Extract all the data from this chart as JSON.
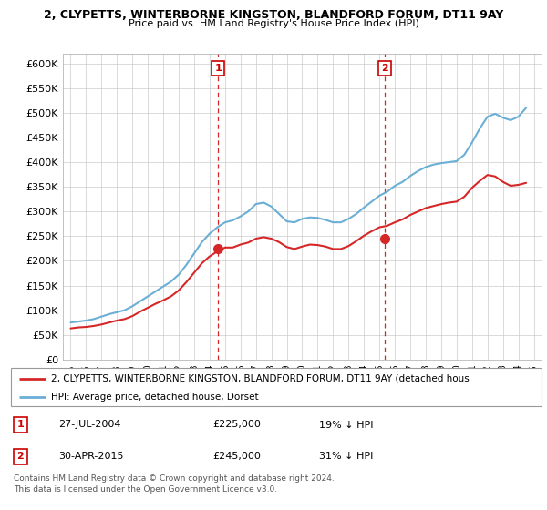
{
  "title_line1": "2, CLYPETTS, WINTERBORNE KINGSTON, BLANDFORD FORUM, DT11 9AY",
  "title_line2": "Price paid vs. HM Land Registry's House Price Index (HPI)",
  "hpi_label": "HPI: Average price, detached house, Dorset",
  "price_label": "2, CLYPETTS, WINTERBORNE KINGSTON, BLANDFORD FORUM, DT11 9AY (detached hous",
  "hpi_color": "#6baed6",
  "price_color": "#d62728",
  "sale1_date": "27-JUL-2004",
  "sale1_price": 225000,
  "sale1_pct": "19%",
  "sale2_date": "30-APR-2015",
  "sale2_price": 245000,
  "sale2_pct": "31%",
  "sale1_year": 2004.56,
  "sale2_year": 2015.33,
  "ylim": [
    0,
    620000
  ],
  "xlim": [
    1994.5,
    2025.5
  ],
  "yticks": [
    0,
    50000,
    100000,
    150000,
    200000,
    250000,
    300000,
    350000,
    400000,
    450000,
    500000,
    550000,
    600000
  ],
  "ytick_labels": [
    "£0",
    "£50K",
    "£100K",
    "£150K",
    "£200K",
    "£250K",
    "£300K",
    "£350K",
    "£400K",
    "£450K",
    "£500K",
    "£550K",
    "£600K"
  ],
  "copyright_text": "Contains HM Land Registry data © Crown copyright and database right 2024.\nThis data is licensed under the Open Government Licence v3.0.",
  "hpi_years": [
    1995,
    1995.5,
    1996,
    1996.5,
    1997,
    1997.5,
    1998,
    1998.5,
    1999,
    1999.5,
    2000,
    2000.5,
    2001,
    2001.5,
    2002,
    2002.5,
    2003,
    2003.5,
    2004,
    2004.5,
    2005,
    2005.5,
    2006,
    2006.5,
    2007,
    2007.5,
    2008,
    2008.5,
    2009,
    2009.5,
    2010,
    2010.5,
    2011,
    2011.5,
    2012,
    2012.5,
    2013,
    2013.5,
    2014,
    2014.5,
    2015,
    2015.5,
    2016,
    2016.5,
    2017,
    2017.5,
    2018,
    2018.5,
    2019,
    2019.5,
    2020,
    2020.5,
    2021,
    2021.5,
    2022,
    2022.5,
    2023,
    2023.5,
    2024,
    2024.5
  ],
  "hpi_values": [
    75000,
    77000,
    79000,
    82000,
    87000,
    92000,
    96000,
    100000,
    108000,
    118000,
    128000,
    138000,
    148000,
    158000,
    172000,
    192000,
    215000,
    238000,
    255000,
    268000,
    278000,
    282000,
    290000,
    300000,
    315000,
    318000,
    310000,
    295000,
    280000,
    278000,
    285000,
    288000,
    287000,
    283000,
    278000,
    278000,
    285000,
    295000,
    308000,
    320000,
    332000,
    340000,
    352000,
    360000,
    372000,
    382000,
    390000,
    395000,
    398000,
    400000,
    402000,
    415000,
    440000,
    468000,
    492000,
    498000,
    490000,
    485000,
    492000,
    510000
  ],
  "price_years": [
    1995,
    1995.5,
    1996,
    1996.5,
    1997,
    1997.5,
    1998,
    1998.5,
    1999,
    1999.5,
    2000,
    2000.5,
    2001,
    2001.5,
    2002,
    2002.5,
    2003,
    2003.5,
    2004,
    2004.5,
    2005,
    2005.5,
    2006,
    2006.5,
    2007,
    2007.5,
    2008,
    2008.5,
    2009,
    2009.5,
    2010,
    2010.5,
    2011,
    2011.5,
    2012,
    2012.5,
    2013,
    2013.5,
    2014,
    2014.5,
    2015,
    2015.5,
    2016,
    2016.5,
    2017,
    2017.5,
    2018,
    2018.5,
    2019,
    2019.5,
    2020,
    2020.5,
    2021,
    2021.5,
    2022,
    2022.5,
    2023,
    2023.5,
    2024,
    2024.5
  ],
  "price_values": [
    63000,
    65000,
    66000,
    68000,
    71000,
    75000,
    79000,
    82000,
    88000,
    97000,
    105000,
    113000,
    120000,
    128000,
    140000,
    157000,
    176000,
    195000,
    209000,
    219000,
    227000,
    227000,
    233000,
    237000,
    245000,
    248000,
    245000,
    238000,
    228000,
    224000,
    229000,
    233000,
    232000,
    229000,
    224000,
    224000,
    230000,
    240000,
    251000,
    260000,
    268000,
    271000,
    278000,
    284000,
    293000,
    300000,
    307000,
    311000,
    315000,
    318000,
    320000,
    330000,
    348000,
    362000,
    374000,
    371000,
    360000,
    352000,
    354000,
    358000
  ]
}
